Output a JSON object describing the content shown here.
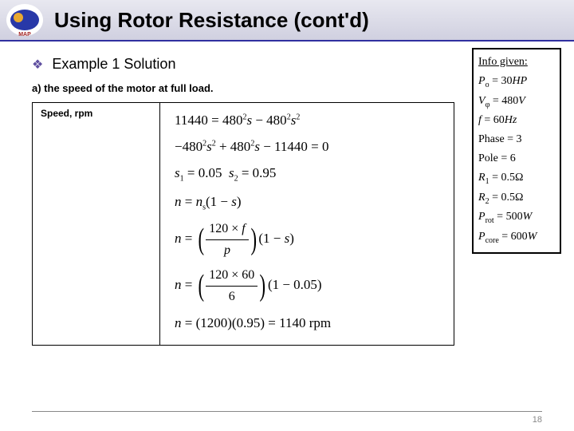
{
  "header": {
    "title": "Using Rotor Resistance (cont'd)",
    "logo_text": "MAP"
  },
  "subtitle": "Example 1 Solution",
  "part_label": "a) the speed of the motor at full load.",
  "table": {
    "left_header": "Speed, rpm",
    "eq1": "11440 = 480²s − 480²s²",
    "eq2": "−480²s² + 480²s − 11440 = 0",
    "eq3_a": "s₁ = 0.05",
    "eq3_b": "s₂ = 0.95",
    "eq4": "n = nₛ(1 − s)",
    "eq5_num": "120 × f",
    "eq5_den": "p",
    "eq5_tail": "(1 − s)",
    "eq6_num": "120 × 60",
    "eq6_den": "6",
    "eq6_tail": "(1 − 0.05)",
    "eq7": "n = (1200)(0.95) = 1140 rpm"
  },
  "info": {
    "header": "Info given:",
    "p": "Pₒ = 30HP",
    "v": "Vφ = 480V",
    "f": "f = 60Hz",
    "phase": "Phase = 3",
    "pole": "Pole = 6",
    "r1": "R₁ = 0.5Ω",
    "r2": "R₂ = 0.5Ω",
    "prot": "Pᵣₒₜ = 500W",
    "pcore": "P꜀ₒᵣₑ = 600W"
  },
  "page": "18"
}
